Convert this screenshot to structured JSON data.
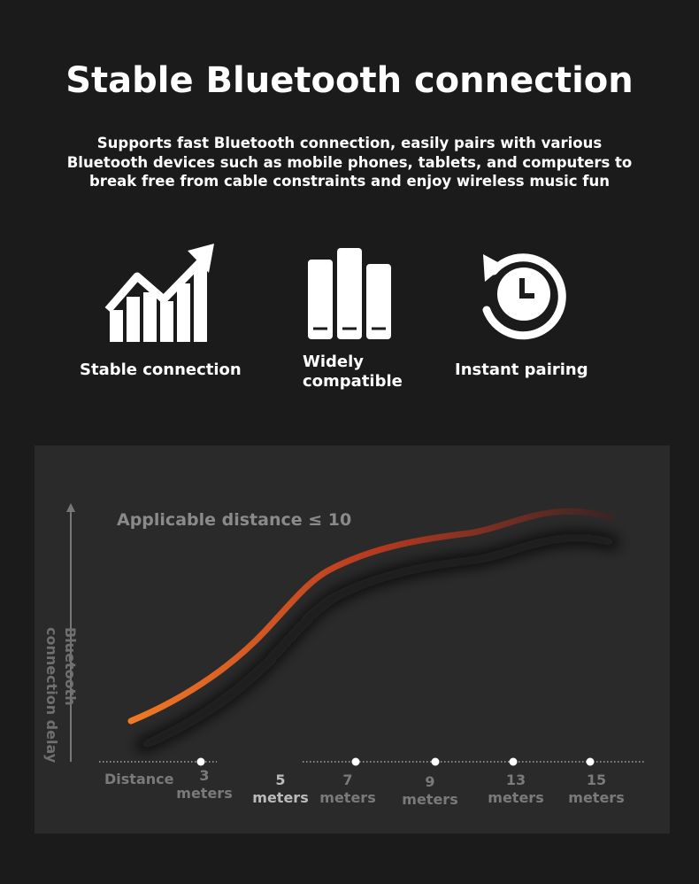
{
  "header": {
    "title": "Stable Bluetooth connection",
    "subtitle": "Supports fast Bluetooth connection, easily pairs with various Bluetooth devices such as mobile phones, tablets, and computers to break free from cable constraints and enjoy wireless music fun"
  },
  "features": [
    {
      "label": "Stable connection"
    },
    {
      "label": "Widely compatible"
    },
    {
      "label": "Instant pairing"
    }
  ],
  "graph": {
    "annotation": "Applicable distance ≤ 10",
    "y_label": "Bluetooth connection delay",
    "x_label": "Distance",
    "x_points": [
      "3 meters",
      "5 meters",
      "7 meters",
      "9 meters",
      "13 meters",
      "15 meters"
    ]
  }
}
